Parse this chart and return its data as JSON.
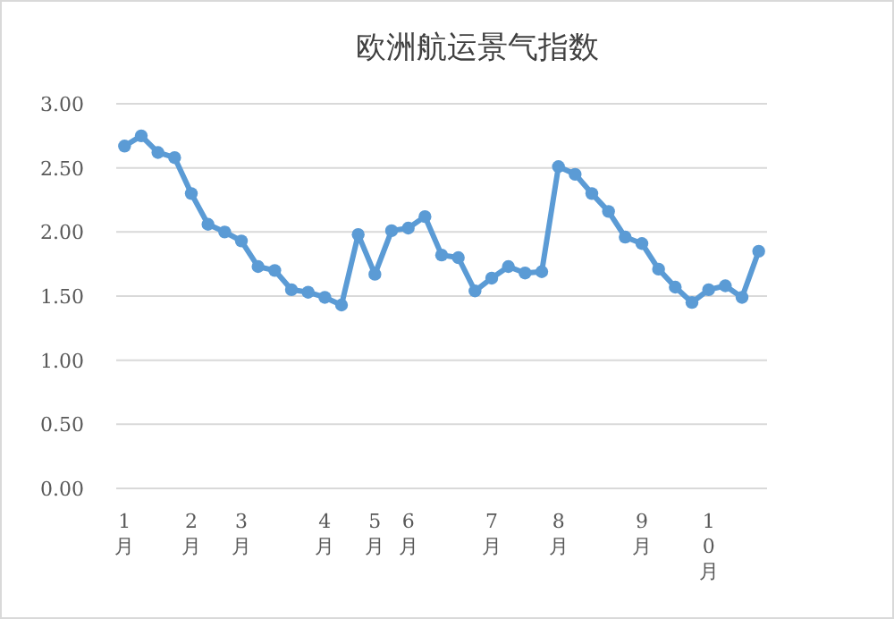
{
  "chart_data": {
    "type": "line",
    "title": "欧洲航运景气指数",
    "categories": [
      "1月",
      null,
      null,
      null,
      "2月",
      null,
      null,
      "3月",
      null,
      null,
      null,
      null,
      "4月",
      null,
      null,
      "5月",
      null,
      "6月",
      null,
      null,
      null,
      null,
      "7月",
      null,
      null,
      null,
      "8月",
      null,
      null,
      null,
      null,
      "9月",
      null,
      null,
      null,
      "10月",
      null,
      null,
      null
    ],
    "series": [
      {
        "color": "#5b9bd5",
        "values": [
          2.67,
          2.75,
          2.62,
          2.58,
          2.3,
          2.06,
          2.0,
          1.93,
          1.73,
          1.7,
          1.55,
          1.53,
          1.49,
          1.43,
          1.98,
          1.67,
          2.01,
          2.03,
          2.12,
          1.82,
          1.8,
          1.54,
          1.64,
          1.73,
          1.68,
          1.69,
          2.51,
          2.45,
          2.3,
          2.16,
          1.96,
          1.91,
          1.71,
          1.57,
          1.45,
          1.55,
          1.58,
          1.49,
          1.85
        ]
      }
    ],
    "ylim": [
      0,
      3
    ],
    "yticks": [
      {
        "value": 0,
        "label": "0.00"
      },
      {
        "value": 0.5,
        "label": "0.50"
      },
      {
        "value": 1,
        "label": "1.00"
      },
      {
        "value": 1.5,
        "label": "1.50"
      },
      {
        "value": 2,
        "label": "2.00"
      },
      {
        "value": 2.5,
        "label": "2.50"
      },
      {
        "value": 3,
        "label": "3.00"
      }
    ],
    "grid": "y",
    "marker": "circle",
    "line_style": "solid"
  }
}
